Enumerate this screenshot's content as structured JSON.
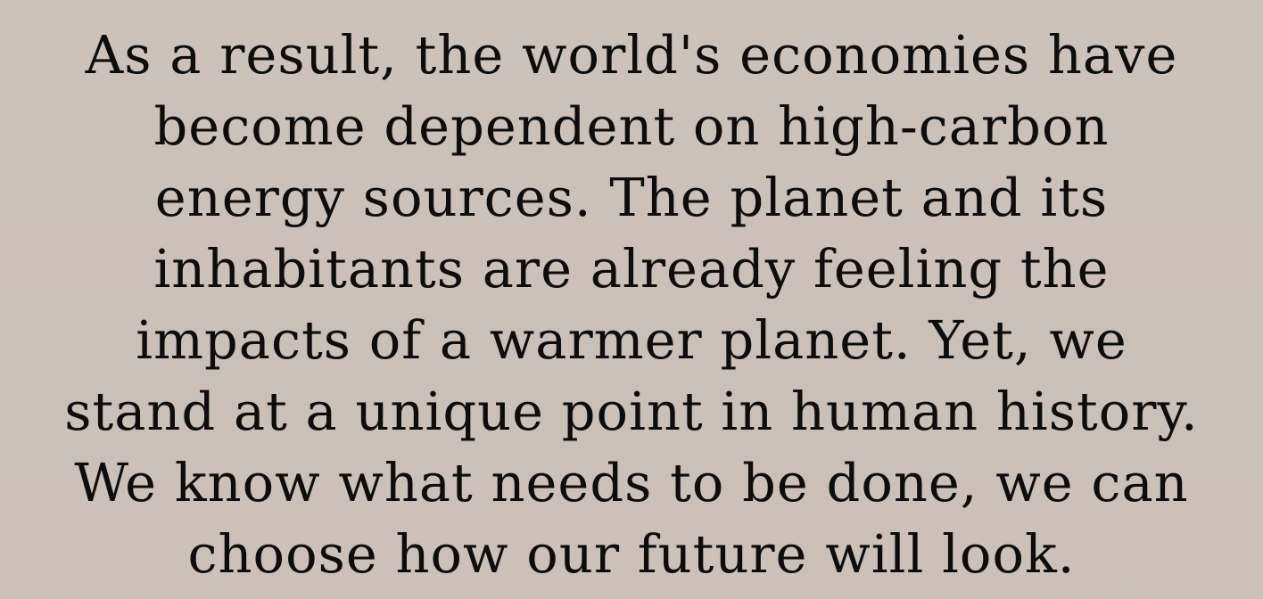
{
  "text": {
    "lines": [
      "As a result, the world's economies have",
      "become dependent on high-carbon",
      "energy sources. The planet and its",
      "inhabitants are already feeling the",
      "impacts of a warmer planet. Yet, we",
      "stand at a unique point in human history.",
      "We know what needs to be done, we can",
      "choose how our future will look."
    ]
  },
  "colors": {
    "background": "#cbc0b8",
    "text": "#0d0d0d"
  }
}
